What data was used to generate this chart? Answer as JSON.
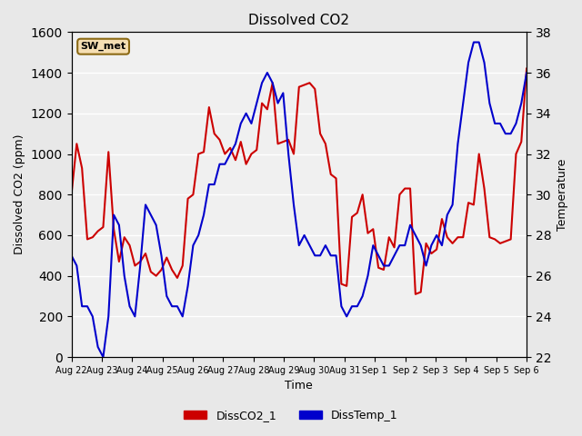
{
  "title": "Dissolved CO2",
  "xlabel": "Time",
  "ylabel_left": "Dissolved CO2 (ppm)",
  "ylabel_right": "Temperature",
  "ylim_left": [
    0,
    1600
  ],
  "ylim_right": [
    22,
    38
  ],
  "yticks_left": [
    0,
    200,
    400,
    600,
    800,
    1000,
    1200,
    1400,
    1600
  ],
  "yticks_right": [
    22,
    24,
    26,
    28,
    30,
    32,
    34,
    36,
    38
  ],
  "bg_color": "#e8e8e8",
  "plot_bg_color": "#f0f0f0",
  "grid_color": "white",
  "annotation_text": "SW_met",
  "annotation_bg": "#f5deb3",
  "annotation_border": "#8b6914",
  "x_tick_labels": [
    "Aug 22",
    "Aug 23",
    "Aug 24",
    "Aug 25",
    "Aug 26",
    "Aug 27",
    "Aug 28",
    "Aug 29",
    "Aug 30",
    "Aug 31",
    "Sep 1",
    "Sep 2",
    "Sep 3",
    "Sep 4",
    "Sep 5",
    "Sep 6"
  ],
  "co2_color": "#cc0000",
  "temp_color": "#0000cc",
  "line_width": 1.5,
  "legend_co2": "DissCO2_1",
  "legend_temp": "DissTemp_1",
  "x_days": [
    0,
    1,
    2,
    3,
    4,
    5,
    6,
    7,
    8,
    9,
    10,
    11,
    12,
    13,
    14,
    15
  ],
  "co2_values": [
    800,
    1050,
    930,
    580,
    590,
    620,
    640,
    1010,
    630,
    470,
    590,
    550,
    450,
    470,
    510,
    420,
    400,
    430,
    490,
    430,
    390,
    450,
    780,
    800,
    1000,
    1010,
    1230,
    1100,
    1070,
    1000,
    1030,
    970,
    1060,
    950,
    1000,
    1020,
    1250,
    1220,
    1350,
    1050,
    1060,
    1070,
    1000,
    1330,
    1340,
    1350,
    1320,
    1100,
    1050,
    900,
    880,
    360,
    350,
    690,
    710,
    800,
    610,
    630,
    440,
    430,
    590,
    540,
    800,
    830,
    830,
    310,
    320,
    560,
    510,
    530,
    680,
    590,
    560,
    590,
    590,
    760,
    750,
    1000,
    830,
    590,
    580,
    560,
    570,
    580,
    1000,
    1060,
    1420
  ],
  "temp_values": [
    27.0,
    26.5,
    24.5,
    24.5,
    24.0,
    22.5,
    22.0,
    24.0,
    29.0,
    28.5,
    26.0,
    24.5,
    24.0,
    26.5,
    29.5,
    29.0,
    28.5,
    27.0,
    25.0,
    24.5,
    24.5,
    24.0,
    25.5,
    27.5,
    28.0,
    29.0,
    30.5,
    30.5,
    31.5,
    31.5,
    32.0,
    32.5,
    33.5,
    34.0,
    33.5,
    34.5,
    35.5,
    36.0,
    35.5,
    34.5,
    35.0,
    32.0,
    29.5,
    27.5,
    28.0,
    27.5,
    27.0,
    27.0,
    27.5,
    27.0,
    27.0,
    24.5,
    24.0,
    24.5,
    24.5,
    25.0,
    26.0,
    27.5,
    27.0,
    26.5,
    26.5,
    27.0,
    27.5,
    27.5,
    28.5,
    28.0,
    27.5,
    26.5,
    27.5,
    28.0,
    27.5,
    29.0,
    29.5,
    32.5,
    34.5,
    36.5,
    37.5,
    37.5,
    36.5,
    34.5,
    33.5,
    33.5,
    33.0,
    33.0,
    33.5,
    34.5,
    36.0
  ]
}
